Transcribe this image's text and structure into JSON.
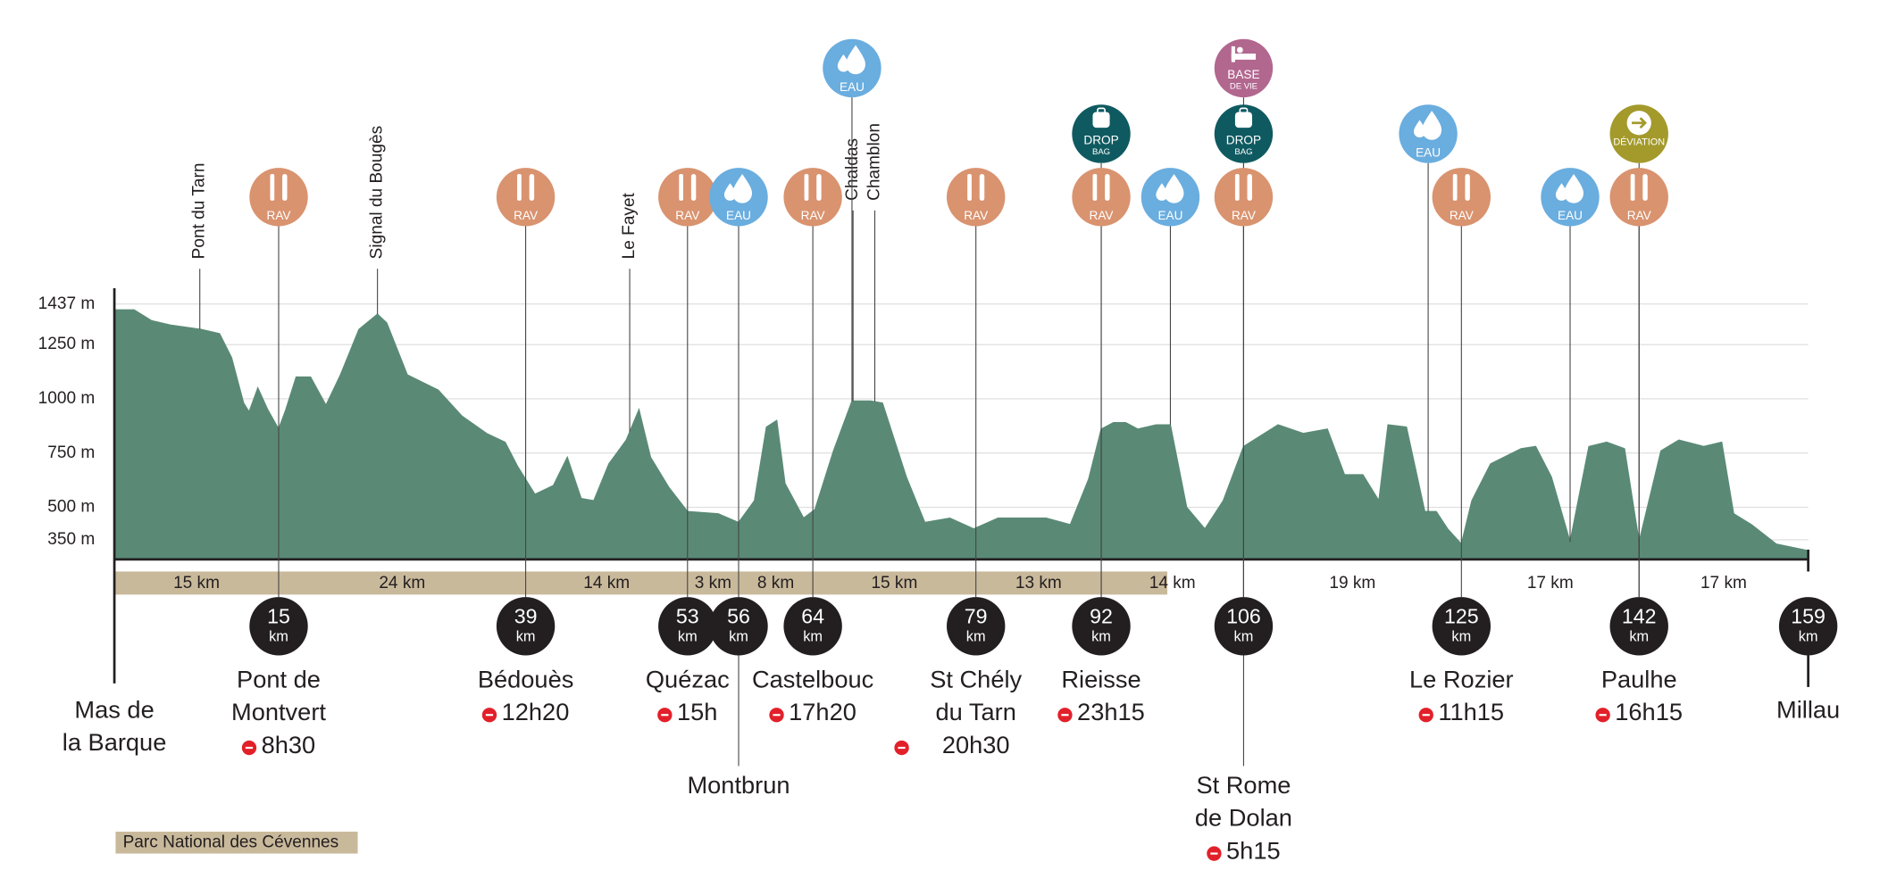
{
  "chart_data": {
    "type": "area",
    "color": "#5a8a76",
    "xlim": [
      0,
      159
    ],
    "ylim": [
      260,
      1437
    ],
    "yticks": [
      {
        "value": 350,
        "label": "350 m"
      },
      {
        "value": 500,
        "label": "500 m"
      },
      {
        "value": 750,
        "label": "750 m"
      },
      {
        "value": 1000,
        "label": "1000 m"
      },
      {
        "value": 1250,
        "label": "1250 m"
      },
      {
        "value": 1437,
        "label": "1437 m"
      }
    ],
    "grid": true,
    "x": [
      0,
      1.8,
      3.4,
      5.1,
      7.9,
      9.6,
      10.7,
      11.8,
      12.3,
      13.1,
      14.0,
      15,
      15.7,
      16.7,
      18.1,
      19.6,
      21.0,
      22.8,
      24.6,
      25.5,
      27.5,
      30.5,
      32.8,
      35.2,
      37.0,
      38.2,
      39.8,
      41.4,
      42.6,
      43.8,
      44.9,
      46.2,
      47.7,
      48.8,
      49.8,
      51.4,
      53,
      54.8,
      56,
      57.7,
      59.0,
      60.1,
      61.0,
      63.0,
      64.2,
      65.9,
      67.6,
      69.3,
      70.4,
      72.6,
      74.3,
      76.6,
      78.8,
      81.3,
      83.8,
      86.3,
      88.8,
      90.7,
      92,
      93.2,
      94.4,
      95.6,
      97.4,
      98.8,
      100.4,
      102.2,
      104.0,
      106,
      109.0,
      111.2,
      113.3,
      114.8,
      116.4,
      117.8,
      118.6,
      120.2,
      121.8,
      122.8,
      123.8,
      125,
      126.0,
      127.8,
      130.7,
      132.1,
      133.6,
      135.4,
      137.2,
      138.9,
      140.6,
      142,
      144.2,
      146.0,
      148.5,
      150.3,
      151.5,
      153.3,
      155.8,
      159
    ],
    "values": [
      1410,
      1410,
      1360,
      1340,
      1320,
      1300,
      1190,
      980,
      940,
      1050,
      950,
      860,
      950,
      1100,
      1100,
      970,
      1110,
      1320,
      1390,
      1350,
      1110,
      1040,
      920,
      840,
      800,
      690,
      560,
      600,
      730,
      540,
      530,
      700,
      810,
      950,
      730,
      590,
      480,
      470,
      430,
      530,
      870,
      900,
      610,
      450,
      490,
      760,
      990,
      990,
      980,
      640,
      430,
      450,
      400,
      450,
      450,
      450,
      420,
      630,
      860,
      890,
      890,
      860,
      880,
      880,
      500,
      400,
      530,
      780,
      880,
      840,
      860,
      650,
      650,
      530,
      880,
      870,
      480,
      480,
      400,
      330,
      530,
      700,
      770,
      780,
      640,
      340,
      780,
      800,
      770,
      340,
      760,
      810,
      780,
      800,
      470,
      420,
      330,
      300
    ],
    "km_unit": "km",
    "waypoints": [
      {
        "name": [
          "Mas de",
          "la Barque"
        ]
      },
      {
        "km": 15,
        "name": [
          "Pont de",
          "Montvert"
        ],
        "time": "8h30"
      },
      {
        "km": 39,
        "name": [
          "Bédouès"
        ],
        "time": "12h20"
      },
      {
        "km": 53,
        "name": [
          "Quézac"
        ],
        "time": "15h"
      },
      {
        "km": 56,
        "name": [
          "Montbrun"
        ]
      },
      {
        "km": 64,
        "name": [
          "Castelbouc"
        ],
        "time": "17h20"
      },
      {
        "km": 79,
        "name": [
          "St Chély",
          "du Tarn"
        ],
        "time": "20h30"
      },
      {
        "km": 92,
        "name": [
          "Rieisse"
        ],
        "time": "23h15"
      },
      {
        "km": 106,
        "name": [
          "St Rome",
          "de Dolan"
        ],
        "time": "5h15"
      },
      {
        "km": 125,
        "name": [
          "Le Rozier"
        ],
        "time": "11h15"
      },
      {
        "km": 142,
        "name": [
          "Paulhe"
        ],
        "time": "16h15"
      },
      {
        "km": 159,
        "name": [
          "Millau"
        ]
      }
    ],
    "segments": [
      "15 km",
      "24 km",
      "14 km",
      "3 km",
      "8 km",
      "15 km",
      "13 km",
      "14 km",
      "19 km",
      "17 km",
      "17 km"
    ],
    "peaks": [
      {
        "label": "Pont du Tarn",
        "km": 7.8
      },
      {
        "label": "Signal du Bougès",
        "km": 24.6
      },
      {
        "label": "Le Fayet",
        "km": 48.0
      },
      {
        "label": "Chaldas",
        "km": 67.7
      },
      {
        "label": "Chamblon",
        "km": 69.7
      }
    ],
    "service_types": [
      {
        "label": [
          "RAV"
        ],
        "color": "#d9936f"
      },
      {
        "label": [
          "EAU"
        ],
        "color": "#6aaddf"
      },
      {
        "label": [
          "DROP",
          "BAG"
        ],
        "color": "#0f5a61"
      },
      {
        "label": [
          "BASE",
          "DE VIE"
        ],
        "color": "#b2678f"
      },
      {
        "label": [
          "DÉVIATION"
        ],
        "color": "#a39a2b"
      }
    ],
    "services": [
      {
        "type": 0,
        "km": 15
      },
      {
        "type": 0,
        "km": 39
      },
      {
        "type": 0,
        "km": 53
      },
      {
        "type": 1,
        "km": 56
      },
      {
        "type": 0,
        "km": 64
      },
      {
        "type": 1,
        "km": 67.6
      },
      {
        "type": 0,
        "km": 79
      },
      {
        "type": 0,
        "km": 92
      },
      {
        "type": 2,
        "km": 92
      },
      {
        "type": 1,
        "km": 98.8
      },
      {
        "type": 0,
        "km": 106
      },
      {
        "type": 2,
        "km": 106
      },
      {
        "type": 3,
        "km": 106
      },
      {
        "type": 1,
        "km": 122.1
      },
      {
        "type": 0,
        "km": 125
      },
      {
        "type": 1,
        "km": 135.4
      },
      {
        "type": 0,
        "km": 142
      },
      {
        "type": 4,
        "km": 142
      }
    ],
    "park": {
      "label": "Parc National des Cévennes",
      "end_km": 98.5,
      "color": "#c9b99b"
    }
  }
}
